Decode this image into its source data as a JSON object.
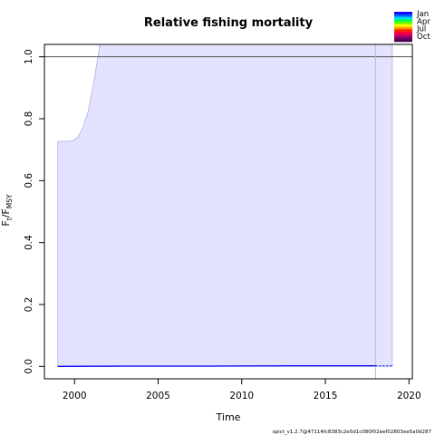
{
  "chart_data": {
    "type": "line",
    "title": "Relative fishing mortality",
    "xlabel": "Time",
    "ylabel_main": "F",
    "ylabel_sub_t": "t",
    "ylabel_sep": "/F",
    "ylabel_sub_msy": "MSY",
    "xlim": [
      1998.2,
      2020.2
    ],
    "ylim": [
      -0.04,
      1.04
    ],
    "x_ticks": [
      2000,
      2005,
      2010,
      2015,
      2020
    ],
    "y_ticks": [
      0.0,
      0.2,
      0.4,
      0.6,
      0.8,
      1.0
    ],
    "x_tick_labels": [
      "2000",
      "2005",
      "2010",
      "2015",
      "2020"
    ],
    "y_tick_labels": [
      "0.0",
      "0.2",
      "0.4",
      "0.6",
      "0.8",
      "1.0"
    ],
    "reference_line": {
      "y": 1.0,
      "color": "#555555"
    },
    "last_observation_x": 2018.0,
    "series": [
      {
        "role": "estimate",
        "color": "#0000ff",
        "x": [
          1999.0,
          2003.0,
          2008.0,
          2013.0,
          2018.0
        ],
        "values": [
          0.0,
          0.001,
          0.001,
          0.002,
          0.002
        ]
      },
      {
        "role": "prediction",
        "color": "#0000ff",
        "dashed": true,
        "x": [
          2018.0,
          2019.0
        ],
        "values": [
          0.002,
          0.002
        ]
      }
    ],
    "ci_band": {
      "color": "#e3e3ff",
      "stroke": "#9999dd",
      "x": [
        1999.0,
        1999.3,
        1999.6,
        1999.9,
        2000.2,
        2000.5,
        2000.8,
        2001.1,
        2001.4,
        2001.7,
        2002.0,
        2002.1,
        2019.0
      ],
      "upper": [
        0.727,
        0.727,
        0.727,
        0.729,
        0.74,
        0.77,
        0.82,
        0.9,
        1.0,
        1.12,
        1.25,
        1.3,
        1.3
      ],
      "lower": [
        0.0,
        0.0,
        0.0,
        0.0,
        0.0,
        0.0,
        0.0,
        0.0,
        0.0,
        0.0,
        0.0,
        0.0,
        0.0
      ]
    },
    "legend": {
      "placement": "top-right",
      "labels": [
        "Jan",
        "Apr",
        "Jul",
        "Oct"
      ],
      "colors": [
        "#1a00ff",
        "#0061ff",
        "#00d8ff",
        "#00ff4d",
        "#6dff00",
        "#f4ff00",
        "#ff9f00",
        "#ff2800",
        "#ff003a",
        "#c20060",
        "#800070",
        "#4a0050"
      ]
    }
  },
  "footer": {
    "text": "spict_v1.2.7@47114fc8383c2e5d1c080f02eef02803ee5a0d287"
  }
}
